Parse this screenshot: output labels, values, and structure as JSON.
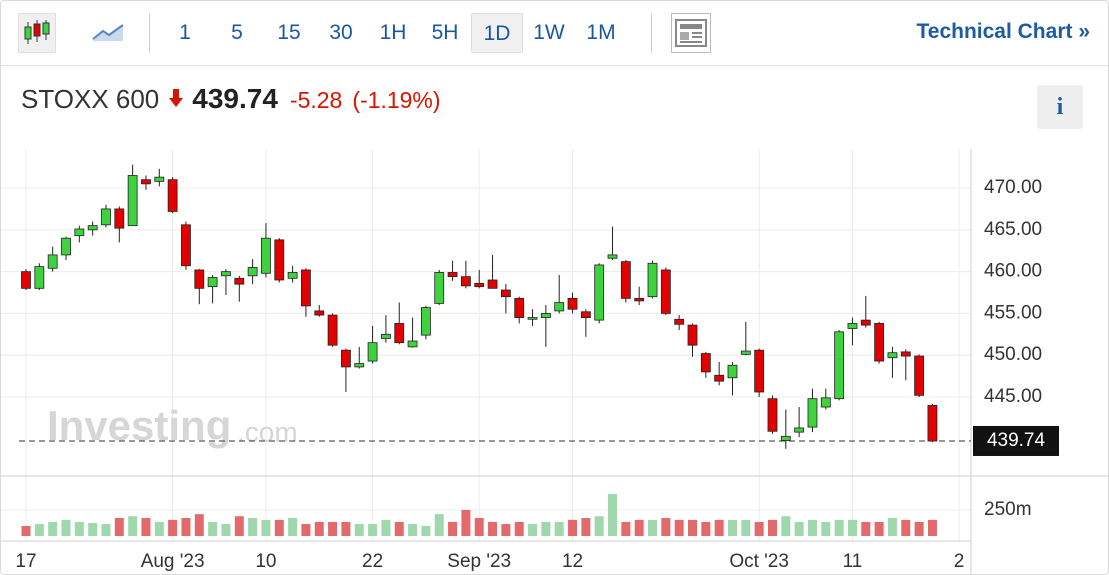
{
  "toolbar": {
    "intervals": [
      "1",
      "5",
      "15",
      "30",
      "1H",
      "5H",
      "1D",
      "1W",
      "1M"
    ],
    "active": "1D",
    "link": "Technical Chart »"
  },
  "header": {
    "name": "STOXX 600",
    "price": 439.74,
    "change": -5.28,
    "change_pct": {
      "value": -1.19,
      "label": "(-1.19%)"
    },
    "info": "i"
  },
  "chart_data": {
    "type": "candlestick",
    "categories": [
      "17",
      null,
      null,
      null,
      null,
      null,
      null,
      null,
      null,
      null,
      null,
      "Aug '23",
      null,
      null,
      null,
      null,
      null,
      null,
      "10",
      null,
      null,
      null,
      null,
      null,
      null,
      null,
      "22",
      null,
      null,
      null,
      null,
      null,
      null,
      null,
      "Sep '23",
      null,
      null,
      null,
      null,
      null,
      null,
      "12",
      null,
      null,
      null,
      null,
      null,
      null,
      null,
      null,
      null,
      null,
      null,
      null,
      null,
      "Oct '23",
      null,
      null,
      null,
      null,
      null,
      null,
      "11",
      null,
      null,
      null,
      null,
      null,
      null,
      null,
      "2"
    ],
    "open": [
      460,
      458,
      460.4,
      462,
      464.3,
      465,
      465.6,
      467.5,
      465.5,
      471,
      470.8,
      471,
      465.6,
      460.2,
      458.2,
      459.5,
      459.2,
      459.5,
      459.8,
      463.8,
      459.2,
      460.2,
      455.3,
      454.8,
      450.6,
      448.6,
      449.3,
      452,
      453.8,
      451,
      452.4,
      456.2,
      459.9,
      459.4,
      458.6,
      459,
      457.8,
      456.8,
      454.3,
      454.5,
      455.3,
      456.8,
      455.2,
      454.2,
      461.6,
      461.2,
      456.8,
      457,
      460.2,
      454.3,
      453.6,
      450.2,
      447.6,
      447.3,
      450.1,
      450.6,
      444.8,
      439.8,
      440.8,
      441.4,
      443.8,
      444.8,
      453.2,
      454.2,
      453.8,
      449.7,
      450.4,
      449.9,
      444,
      null,
      null
    ],
    "high": [
      460.3,
      461,
      463,
      464.2,
      465.5,
      466,
      468,
      467.8,
      472.8,
      471.5,
      472.3,
      471.3,
      466,
      460.3,
      459.6,
      460.3,
      459.5,
      461.5,
      465.8,
      464,
      460.7,
      460.4,
      456,
      455,
      450.8,
      451,
      453.5,
      454.8,
      456.3,
      454.5,
      455.9,
      460.2,
      461.3,
      461.3,
      460.2,
      462,
      458.5,
      457,
      455.5,
      456,
      459.6,
      457.5,
      455.5,
      461,
      465.4,
      461.4,
      458.2,
      461.3,
      460.5,
      454.8,
      453.8,
      450.4,
      449.2,
      449.2,
      454,
      450.8,
      445.2,
      443.5,
      443.8,
      446,
      446,
      453,
      454.5,
      457.1,
      454,
      451,
      450.7,
      450.1,
      444.2,
      null,
      null
    ],
    "low": [
      457.8,
      457.8,
      460,
      461.4,
      463.5,
      464.3,
      465.3,
      463.5,
      465.5,
      469.8,
      470.2,
      467,
      460.2,
      456.1,
      456.2,
      457.2,
      456.4,
      458.5,
      459.3,
      458.7,
      458.7,
      454.6,
      454.6,
      451,
      445.6,
      448.4,
      449,
      451.5,
      451.3,
      450.9,
      451.9,
      456,
      458.9,
      458,
      458,
      458,
      455,
      453.8,
      453.5,
      451,
      455,
      455,
      452.2,
      453.8,
      461.4,
      456.3,
      456,
      456.8,
      454.8,
      453,
      449.8,
      447.3,
      446.4,
      445.2,
      450,
      445,
      440.6,
      438.8,
      440.2,
      440.8,
      443.5,
      444.6,
      451.2,
      453.3,
      449,
      447.3,
      447,
      445,
      439.6,
      null,
      null
    ],
    "close": [
      458,
      460.6,
      462,
      464,
      465.1,
      465.5,
      467.5,
      465.2,
      471.5,
      470.5,
      471.3,
      467.2,
      460.7,
      458,
      459.3,
      460,
      458.5,
      460.5,
      464,
      459,
      459.9,
      455.9,
      454.8,
      451.2,
      448.6,
      449,
      451.5,
      452.5,
      451.5,
      451.7,
      455.7,
      459.9,
      459.4,
      458.3,
      458.2,
      458,
      457,
      454.5,
      454.5,
      455,
      456.3,
      455.5,
      454.5,
      460.8,
      462,
      456.8,
      456.5,
      461,
      455,
      453.7,
      451.2,
      448,
      446.9,
      448.8,
      450.5,
      445.6,
      440.9,
      440.3,
      441.3,
      444.8,
      444.9,
      452.8,
      453.8,
      453.6,
      449.3,
      450.3,
      449.9,
      445.2,
      439.74,
      null,
      null
    ],
    "volume": [
      96,
      115,
      135,
      155,
      135,
      125,
      115,
      173,
      190,
      173,
      135,
      155,
      173,
      210,
      135,
      115,
      190,
      173,
      155,
      155,
      173,
      115,
      135,
      135,
      135,
      115,
      115,
      155,
      135,
      115,
      96,
      210,
      135,
      250,
      173,
      135,
      115,
      135,
      115,
      135,
      135,
      155,
      173,
      190,
      404,
      135,
      155,
      155,
      173,
      155,
      155,
      135,
      155,
      155,
      155,
      135,
      155,
      190,
      135,
      155,
      135,
      155,
      155,
      135,
      135,
      173,
      155,
      135,
      155,
      null,
      null
    ],
    "ylim": [
      435.55,
      474.67
    ],
    "yticks": [
      {
        "value": 445,
        "label": "445.00"
      },
      {
        "value": 450,
        "label": "450.00"
      },
      {
        "value": 455,
        "label": "455.00"
      },
      {
        "value": 460,
        "label": "460.00"
      },
      {
        "value": 465,
        "label": "465.00"
      },
      {
        "value": 470,
        "label": "470.00"
      }
    ],
    "volume_ylim": [
      0,
      577
    ],
    "volume_ticks": [
      {
        "value": 250,
        "label": "250m"
      }
    ],
    "last_close": 439.74,
    "up_color": "#3fd23f",
    "down_color": "#e30000",
    "volume_up_color": "#9fd8ac",
    "volume_down_color": "#e26a6a",
    "grid": true,
    "watermark": {
      "brand": "Investing",
      "suffix": ".com"
    }
  }
}
